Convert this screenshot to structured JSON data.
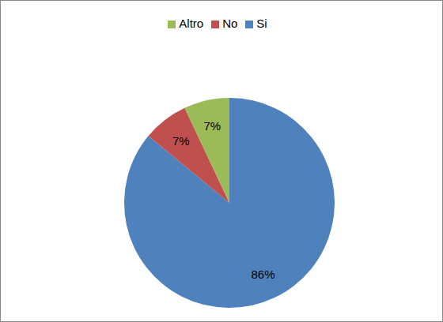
{
  "chart_data": {
    "type": "pie",
    "categories": [
      "Si",
      "No",
      "Altro"
    ],
    "values": [
      86,
      7,
      7
    ],
    "value_labels": [
      "86%",
      "7%",
      "7%"
    ],
    "colors": [
      "#4f81bd",
      "#c0504d",
      "#9bbb59"
    ],
    "legend": "top",
    "data_labels": true
  }
}
